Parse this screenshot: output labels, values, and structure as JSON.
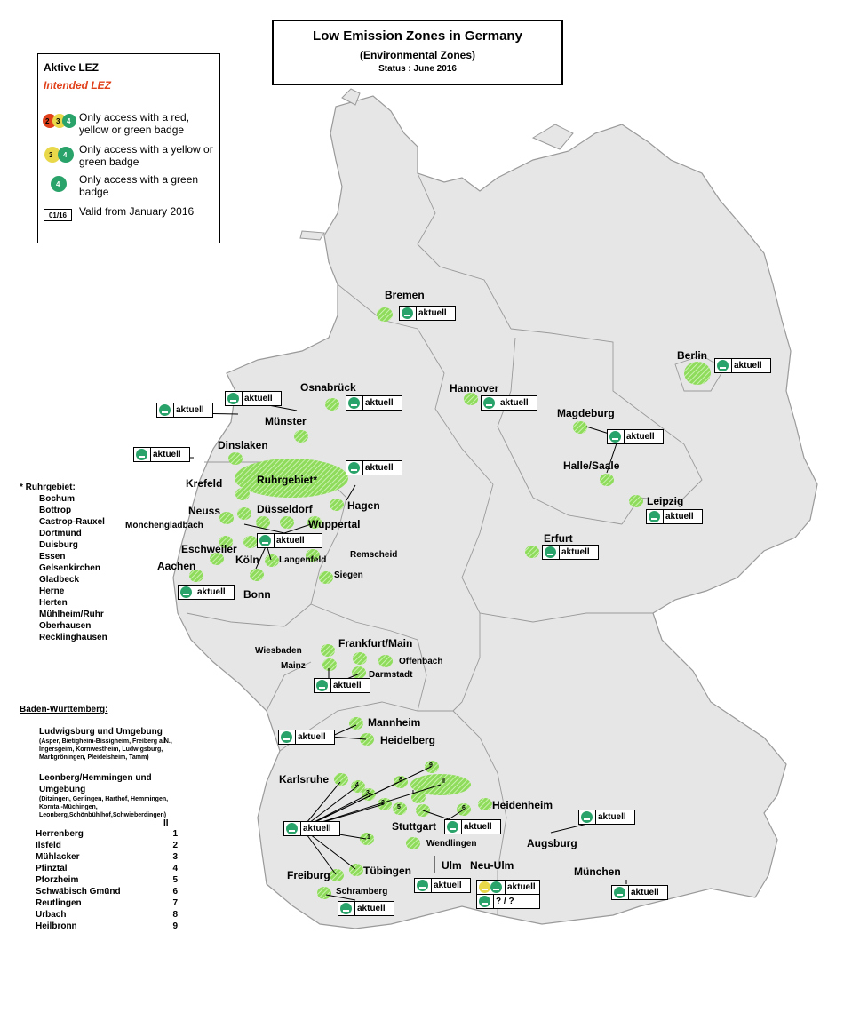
{
  "title": {
    "main": "Low Emission Zones in Germany",
    "sub": "(Environmental  Zones)",
    "status": "Status : June 2016"
  },
  "legend": {
    "active": "Aktive LEZ",
    "intended": "Intended LEZ",
    "row1": "Only access with a red, yellow or green badge",
    "row2": "Only access with a  yellow or green badge",
    "row3": "Only access with a green badge",
    "valid_code": "01/16",
    "valid_text": "Valid from January 2016",
    "badge_numbers": [
      "2",
      "3",
      "4"
    ],
    "colors": {
      "red": "#e0401a",
      "yellow": "#e8d84a",
      "green": "#2aa36a",
      "intended": "#e0401a"
    }
  },
  "badge_label": "aktuell",
  "badge_unknown": "? / ?",
  "cities": {
    "bremen": "Bremen",
    "osnabrueck": "Osnabrück",
    "hannover": "Hannover",
    "berlin": "Berlin",
    "muenster": "Münster",
    "dinslaken": "Dinslaken",
    "ruhrgebiet": "Ruhrgebiet*",
    "krefeld": "Krefeld",
    "magdeburg": "Magdeburg",
    "halle": "Halle/Saale",
    "leipzig": "Leipzig",
    "hagen": "Hagen",
    "neuss": "Neuss",
    "duesseldorf": "Düsseldorf",
    "wuppertal": "Wuppertal",
    "moenchengladbach": "Mönchengladbach",
    "eschweiler": "Eschweiler",
    "koeln": "Köln",
    "langenfeld": "Langenfeld",
    "remscheid": "Remscheid",
    "aachen": "Aachen",
    "siegen": "Siegen",
    "bonn": "Bonn",
    "erfurt": "Erfurt",
    "wiesbaden": "Wiesbaden",
    "frankfurt": "Frankfurt/Main",
    "offenbach": "Offenbach",
    "mainz": "Mainz",
    "darmstadt": "Darmstadt",
    "mannheim": "Mannheim",
    "heidelberg": "Heidelberg",
    "karlsruhe": "Karlsruhe",
    "heidenheim": "Heidenheim",
    "stuttgart": "Stuttgart",
    "wendlingen": "Wendlingen",
    "augsburg": "Augsburg",
    "ulm": "Ulm",
    "neuulm": "Neu-Ulm",
    "muenchen": "München",
    "freiburg": "Freiburg",
    "tuebingen": "Tübingen",
    "schramberg": "Schramberg"
  },
  "zone_numbers": [
    "9",
    "8",
    "I",
    "II",
    "1",
    "2",
    "3",
    "4",
    "5",
    "6",
    "7"
  ],
  "ruhr": {
    "heading_star": "* ",
    "heading": "Ruhrgebiet",
    "heading_colon": ":",
    "cities": [
      "Bochum",
      "Bottrop",
      "Castrop-Rauxel",
      "Dortmund",
      "Duisburg",
      "Essen",
      "Gelsenkirchen",
      "Gladbeck",
      "Herne",
      "Herten",
      "Mühlheim/Ruhr",
      "Oberhausen",
      "Recklinghausen"
    ]
  },
  "bw": {
    "heading": "Baden-Württemberg:",
    "g1_title": "Ludwigsburg und Umgebung",
    "g1_num": "I",
    "g1_detail": "(Asper, Bietigheim-Bissigheim, Freiberg a.N., Ingersgeim, Kornwestheim, Ludwigsburg, Markgröningen, Pleidelsheim, Tamm)",
    "g2_title": "Leonberg/Hemmingen und Umgebung",
    "g2_num": "II",
    "g2_detail": "(Ditzingen, Gerlingen, Harthof, Hemmingen, Korntal-Müchingen, Leonberg,Schönbühlhof,Schwieberdingen)",
    "towns": [
      {
        "name": "Herrenberg",
        "num": "1"
      },
      {
        "name": "Ilsfeld",
        "num": "2"
      },
      {
        "name": "Mühlacker",
        "num": "3"
      },
      {
        "name": "Pfinztal",
        "num": "4"
      },
      {
        "name": "Pforzheim",
        "num": "5"
      },
      {
        "name": "Schwäbisch Gmünd",
        "num": "6"
      },
      {
        "name": "Reutlingen",
        "num": "7"
      },
      {
        "name": "Urbach",
        "num": "8"
      },
      {
        "name": "Heilbronn",
        "num": "9"
      }
    ]
  }
}
